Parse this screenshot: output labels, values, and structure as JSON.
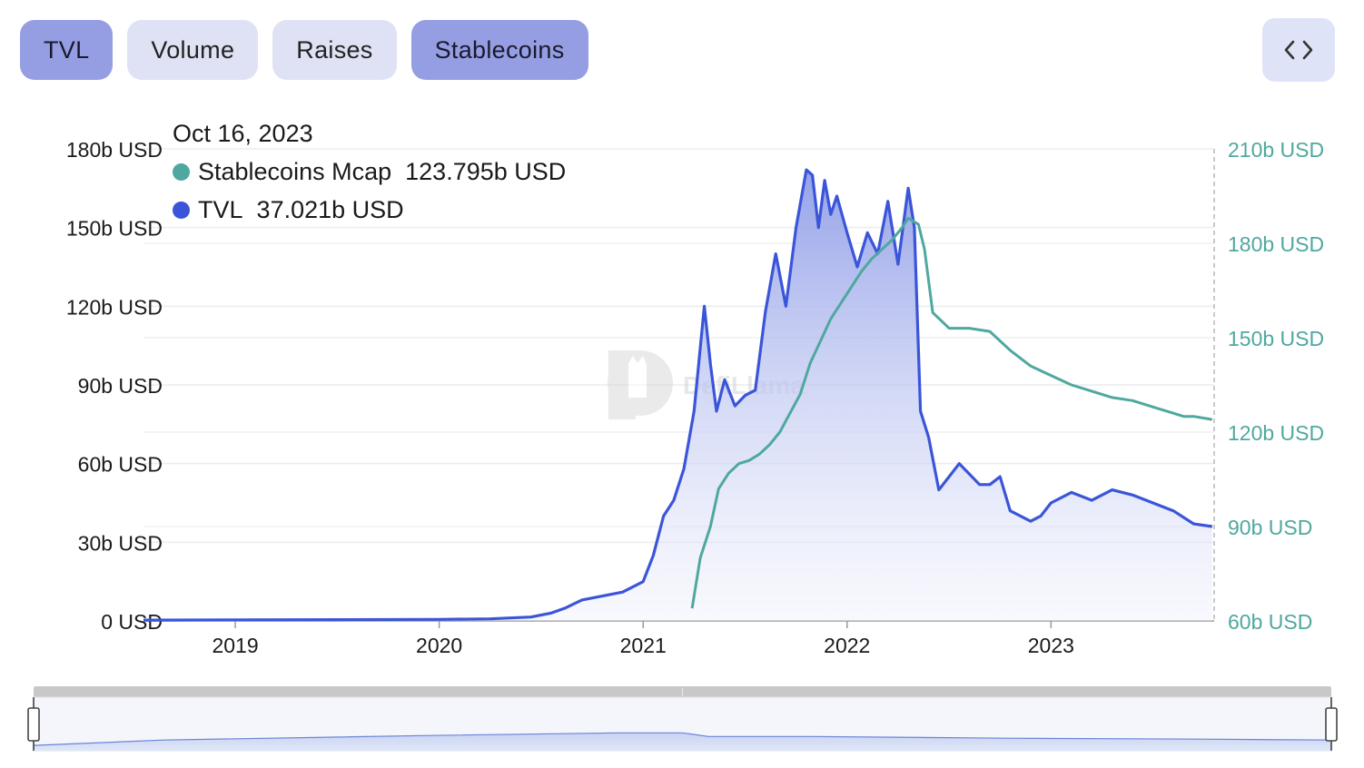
{
  "tabs": [
    {
      "label": "TVL",
      "active": true
    },
    {
      "label": "Volume",
      "active": false
    },
    {
      "label": "Raises",
      "active": false
    },
    {
      "label": "Stablecoins",
      "active": true
    }
  ],
  "embed_button": {
    "icon": "code-icon"
  },
  "tooltip": {
    "date": "Oct 16, 2023",
    "items": [
      {
        "name": "Stablecoins Mcap",
        "value": "123.795b USD",
        "color": "#4fa89f"
      },
      {
        "name": "TVL",
        "value": "37.021b USD",
        "color": "#3b55d9"
      }
    ]
  },
  "watermark": {
    "text": "DefiLlama"
  },
  "zoom_handle": {
    "grip": "⁞"
  },
  "chart_data": {
    "type": "line",
    "x_range": [
      2018.55,
      2023.8
    ],
    "y_left": {
      "min": 0,
      "max": 180,
      "ticks": [
        0,
        30,
        60,
        90,
        120,
        150,
        180
      ],
      "tick_labels": [
        "0 USD",
        "30b USD",
        "60b USD",
        "90b USD",
        "120b USD",
        "150b USD",
        "180b USD"
      ]
    },
    "y_right": {
      "min": 60,
      "max": 210,
      "ticks": [
        60,
        90,
        120,
        150,
        180,
        210
      ],
      "tick_labels": [
        "60b USD",
        "90b USD",
        "120b USD",
        "150b USD",
        "180b USD",
        "210b USD"
      ]
    },
    "x_ticks": [
      2019,
      2020,
      2021,
      2022,
      2023
    ],
    "x_tick_labels": [
      "2019",
      "2020",
      "2021",
      "2022",
      "2023"
    ],
    "series": [
      {
        "name": "TVL",
        "axis": "left",
        "color": "#3b55d9",
        "x": [
          2018.55,
          2019.0,
          2019.5,
          2020.0,
          2020.25,
          2020.45,
          2020.55,
          2020.62,
          2020.7,
          2020.8,
          2020.9,
          2021.0,
          2021.05,
          2021.1,
          2021.15,
          2021.2,
          2021.25,
          2021.3,
          2021.33,
          2021.36,
          2021.4,
          2021.45,
          2021.5,
          2021.55,
          2021.6,
          2021.65,
          2021.7,
          2021.75,
          2021.8,
          2021.83,
          2021.86,
          2021.89,
          2021.92,
          2021.95,
          2022.0,
          2022.05,
          2022.1,
          2022.15,
          2022.2,
          2022.25,
          2022.3,
          2022.33,
          2022.36,
          2022.4,
          2022.45,
          2022.5,
          2022.55,
          2022.6,
          2022.65,
          2022.7,
          2022.75,
          2022.8,
          2022.85,
          2022.9,
          2022.95,
          2023.0,
          2023.1,
          2023.2,
          2023.3,
          2023.4,
          2023.5,
          2023.6,
          2023.7,
          2023.79
        ],
        "values": [
          0.3,
          0.4,
          0.5,
          0.6,
          0.8,
          1.5,
          3,
          5,
          8,
          9.5,
          11,
          15,
          25,
          40,
          46,
          58,
          80,
          120,
          98,
          80,
          92,
          82,
          86,
          88,
          118,
          140,
          120,
          150,
          172,
          170,
          150,
          168,
          155,
          162,
          148,
          135,
          148,
          140,
          160,
          136,
          165,
          150,
          80,
          70,
          50,
          55,
          60,
          56,
          52,
          52,
          55,
          42,
          40,
          38,
          40,
          45,
          49,
          46,
          50,
          48,
          45,
          42,
          37,
          36
        ]
      },
      {
        "name": "Stablecoins Mcap",
        "axis": "right",
        "color": "#4fa89f",
        "x": [
          2021.24,
          2021.28,
          2021.33,
          2021.37,
          2021.42,
          2021.47,
          2021.52,
          2021.57,
          2021.62,
          2021.67,
          2021.72,
          2021.77,
          2021.82,
          2021.87,
          2021.92,
          2021.97,
          2022.02,
          2022.07,
          2022.12,
          2022.17,
          2022.22,
          2022.27,
          2022.3,
          2022.35,
          2022.38,
          2022.42,
          2022.5,
          2022.6,
          2022.7,
          2022.8,
          2022.9,
          2023.0,
          2023.1,
          2023.2,
          2023.3,
          2023.4,
          2023.5,
          2023.6,
          2023.65,
          2023.7,
          2023.79
        ],
        "values": [
          64,
          80,
          90,
          102,
          107,
          110,
          111,
          113,
          116,
          120,
          126,
          132,
          142,
          149,
          156,
          161,
          166,
          171,
          175,
          178,
          181,
          185,
          188,
          186,
          178,
          158,
          153,
          153,
          152,
          146,
          141,
          138,
          135,
          133,
          131,
          130,
          128,
          126,
          125,
          125,
          124
        ]
      }
    ],
    "zoom_overview": {
      "x": [
        0,
        0.1,
        0.3,
        0.45,
        0.5,
        0.52,
        0.6,
        0.75,
        0.9,
        1.0
      ],
      "values": [
        6,
        12,
        17,
        20,
        20,
        16,
        16,
        14,
        13,
        12
      ]
    }
  }
}
